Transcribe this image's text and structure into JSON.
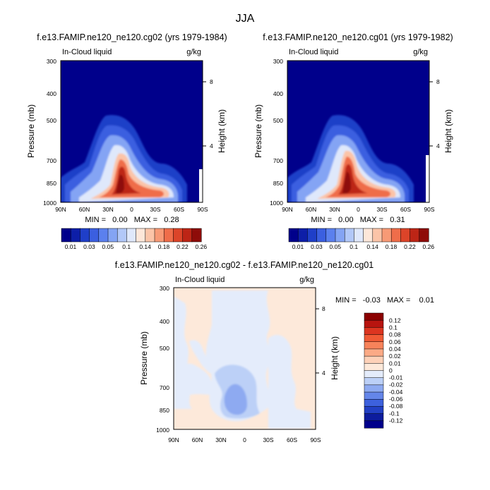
{
  "figure_title": "JJA",
  "chart_data": [
    {
      "type": "heatmap",
      "title": "f.e13.FAMIP.ne120_ne120.cg02 (yrs 1979-1984)",
      "left_label": "In-Cloud liquid",
      "right_label": "g/kg",
      "ylabel": "Pressure (mb)",
      "ylabel_right": "Height (km)",
      "x_ticks": [
        "90N",
        "60N",
        "30N",
        "0",
        "30S",
        "60S",
        "90S"
      ],
      "y_ticks": [
        "300",
        "400",
        "500",
        "700",
        "850",
        "1000"
      ],
      "y_right_ticks": [
        "8",
        "4"
      ],
      "stats_text": "MIN =   0.00   MAX =   0.28",
      "min": 0.0,
      "max": 0.28,
      "colorbar_labels": [
        "0.01",
        "0.03",
        "0.05",
        "0.1",
        "0.14",
        "0.18",
        "0.22",
        "0.26"
      ],
      "colorbar_colors": [
        "#00008b",
        "#0d1ea8",
        "#1f3fc8",
        "#3b5fe0",
        "#5b80ee",
        "#84a4f4",
        "#b2c8f8",
        "#dfe8fb",
        "#fde7d9",
        "#fbc4a8",
        "#f79a76",
        "#ef6d4a",
        "#dc4429",
        "#bd2516",
        "#8e0c09"
      ]
    },
    {
      "type": "heatmap",
      "title": "f.e13.FAMIP.ne120_ne120.cg01 (yrs 1979-1982)",
      "left_label": "In-Cloud liquid",
      "right_label": "g/kg",
      "ylabel": "Pressure (mb)",
      "ylabel_right": "Height (km)",
      "x_ticks": [
        "90N",
        "60N",
        "30N",
        "0",
        "30S",
        "60S",
        "90S"
      ],
      "y_ticks": [
        "300",
        "400",
        "500",
        "700",
        "850",
        "1000"
      ],
      "y_right_ticks": [
        "8",
        "4"
      ],
      "stats_text": "MIN =   0.00   MAX =   0.31",
      "min": 0.0,
      "max": 0.31,
      "colorbar_labels": [
        "0.01",
        "0.03",
        "0.05",
        "0.1",
        "0.14",
        "0.18",
        "0.22",
        "0.26"
      ],
      "colorbar_colors": [
        "#00008b",
        "#0d1ea8",
        "#1f3fc8",
        "#3b5fe0",
        "#5b80ee",
        "#84a4f4",
        "#b2c8f8",
        "#dfe8fb",
        "#fde7d9",
        "#fbc4a8",
        "#f79a76",
        "#ef6d4a",
        "#dc4429",
        "#bd2516",
        "#8e0c09"
      ]
    },
    {
      "type": "heatmap",
      "title": "f.e13.FAMIP.ne120_ne120.cg02 - f.e13.FAMIP.ne120_ne120.cg01",
      "left_label": "In-Cloud liquid",
      "right_label": "g/kg",
      "ylabel": "Pressure (mb)",
      "ylabel_right": "Height (km)",
      "x_ticks": [
        "90N",
        "60N",
        "30N",
        "0",
        "30S",
        "60S",
        "90S"
      ],
      "y_ticks": [
        "300",
        "400",
        "500",
        "700",
        "850",
        "1000"
      ],
      "y_right_ticks": [
        "8",
        "4"
      ],
      "stats_text": "MIN =   -0.03   MAX =    0.01",
      "min": -0.03,
      "max": 0.01,
      "colorbar_labels": [
        "0.12",
        "0.1",
        "0.08",
        "0.06",
        "0.04",
        "0.02",
        "0.01",
        "0",
        "-0.01",
        "-0.02",
        "-0.04",
        "-0.06",
        "-0.08",
        "-0.1",
        "-0.12"
      ],
      "colorbar_colors": [
        "#8b0000",
        "#b8140f",
        "#dc3520",
        "#f05a35",
        "#f7835a",
        "#fbaa86",
        "#fdd1b8",
        "#fde9da",
        "#e4ecfb",
        "#bcd0f7",
        "#8eaaf1",
        "#6486e9",
        "#3d61dd",
        "#2240c4",
        "#0d1c9e",
        "#00008b"
      ]
    }
  ]
}
